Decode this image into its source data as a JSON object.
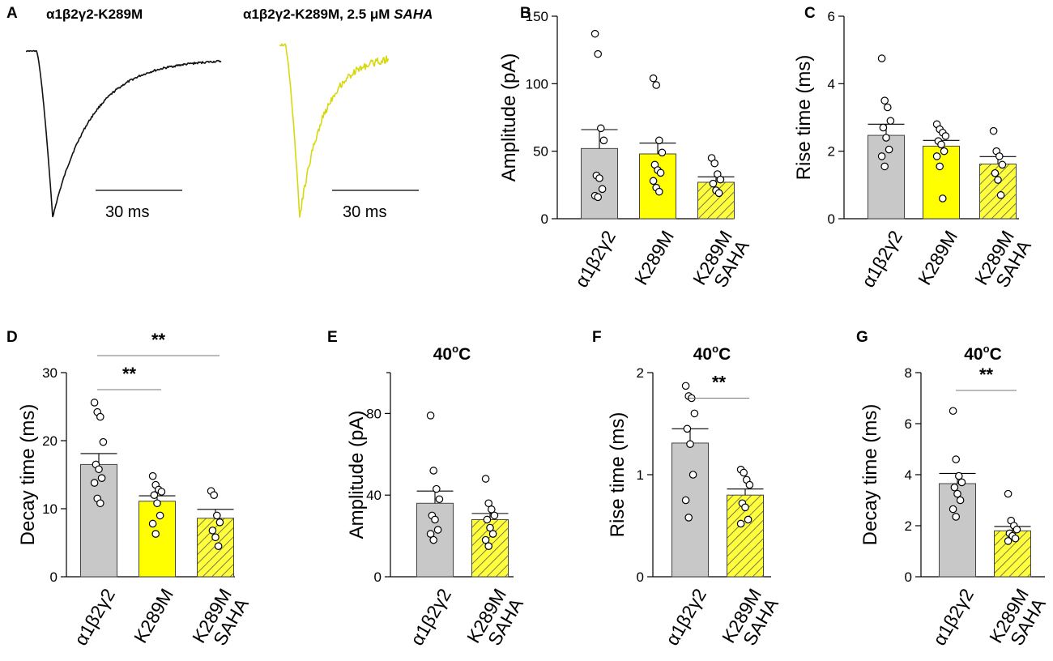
{
  "figure": {
    "colors": {
      "gray": "#c8c8c8",
      "yellow": "#ffff00",
      "hatch_bg": "#ffff3c",
      "hatch_line": "#555555",
      "trace_black": "#111111",
      "trace_yellow": "#d8d810"
    }
  },
  "traces": {
    "panel_label": "A",
    "left": {
      "title": "α1β2γ2-K289M",
      "scale_label": "30 ms"
    },
    "right": {
      "title_main": "α1β2γ2-K289M, 2.5 μM ",
      "title_italic": "SAHA",
      "scale_label": "30 ms"
    }
  },
  "chart_data": [
    {
      "id": "B",
      "panel_label": "B",
      "type": "bar",
      "title": "",
      "ylabel": "Amplitude (pA)",
      "ylim": [
        0,
        150
      ],
      "yticks": [
        0,
        50,
        100,
        150
      ],
      "categories": [
        {
          "line1": "α1β2γ2",
          "line2": "",
          "style": "gray",
          "mean": 52,
          "sem": 14,
          "points": [
            137,
            122,
            67,
            58,
            32,
            30,
            22,
            17,
            16
          ]
        },
        {
          "line1": "K289M",
          "line2": "",
          "style": "yellow",
          "mean": 48,
          "sem": 8,
          "points": [
            104,
            99,
            58,
            49,
            40,
            36,
            34,
            28,
            23,
            20
          ]
        },
        {
          "line1": "K289M",
          "line2": "SAHA",
          "style": "hatch",
          "mean": 27,
          "sem": 4,
          "points": [
            45,
            41,
            33,
            29,
            26,
            21,
            19
          ]
        }
      ],
      "significance": []
    },
    {
      "id": "C",
      "panel_label": "C",
      "type": "bar",
      "title": "",
      "ylabel": "Rise time (ms)",
      "ylim": [
        0,
        6
      ],
      "yticks": [
        0,
        2,
        4,
        6
      ],
      "categories": [
        {
          "line1": "α1β2γ2",
          "line2": "",
          "style": "gray",
          "mean": 2.47,
          "sem": 0.33,
          "points": [
            4.75,
            3.5,
            3.3,
            2.9,
            2.7,
            2.4,
            2.05,
            1.85,
            1.55
          ]
        },
        {
          "line1": "K289M",
          "line2": "",
          "style": "yellow",
          "mean": 2.15,
          "sem": 0.17,
          "points": [
            2.8,
            2.65,
            2.55,
            2.45,
            2.3,
            2.2,
            2.0,
            1.85,
            1.55,
            0.6
          ]
        },
        {
          "line1": "K289M",
          "line2": "SAHA",
          "style": "hatch",
          "mean": 1.62,
          "sem": 0.22,
          "points": [
            2.6,
            2.0,
            1.85,
            1.6,
            1.35,
            1.15,
            0.7
          ]
        }
      ],
      "significance": []
    },
    {
      "id": "D",
      "panel_label": "D",
      "type": "bar",
      "title": "",
      "ylabel": "Decay time (ms)",
      "ylim": [
        0,
        30
      ],
      "yticks": [
        0,
        10,
        20,
        30
      ],
      "categories": [
        {
          "line1": "α1β2γ2",
          "line2": "",
          "style": "gray",
          "mean": 16.5,
          "sem": 1.6,
          "points": [
            25.6,
            24.2,
            23.5,
            19.8,
            16.5,
            15.8,
            14.5,
            13.8,
            11.5,
            10.8
          ]
        },
        {
          "line1": "K289M",
          "line2": "",
          "style": "yellow",
          "mean": 11.1,
          "sem": 0.8,
          "points": [
            14.8,
            13.5,
            12.8,
            12.5,
            12.0,
            10.8,
            9.0,
            7.8,
            6.3
          ]
        },
        {
          "line1": "K289M",
          "line2": "SAHA",
          "style": "hatch",
          "mean": 8.6,
          "sem": 1.3,
          "points": [
            12.6,
            12.0,
            9.0,
            8.0,
            6.8,
            5.8,
            4.5
          ]
        }
      ],
      "significance": [
        {
          "from": 0,
          "to": 1,
          "label": "**",
          "y": 27.5
        },
        {
          "from": 0,
          "to": 2,
          "label": "**",
          "y": 32.5
        }
      ]
    },
    {
      "id": "E",
      "panel_label": "E",
      "type": "bar",
      "title": "40ºC",
      "ylabel": "Amplitude (pA)",
      "ylim": [
        0,
        100
      ],
      "yticks": [
        0,
        40,
        80
      ],
      "categories": [
        {
          "line1": "α1β2γ2",
          "line2": "",
          "style": "gray",
          "mean": 36,
          "sem": 6,
          "points": [
            79,
            52,
            43,
            38,
            30,
            28,
            23,
            21,
            18
          ]
        },
        {
          "line1": "K289M",
          "line2": "SAHA",
          "style": "hatch",
          "mean": 28,
          "sem": 3,
          "points": [
            48,
            36,
            33,
            30,
            28,
            24,
            21,
            18,
            15
          ]
        }
      ],
      "significance": []
    },
    {
      "id": "F",
      "panel_label": "F",
      "type": "bar",
      "title": "40ºC",
      "ylabel": "Rise time (ms)",
      "ylim": [
        0,
        2
      ],
      "yticks": [
        0,
        1,
        2
      ],
      "categories": [
        {
          "line1": "α1β2γ2",
          "line2": "",
          "style": "gray",
          "mean": 1.31,
          "sem": 0.14,
          "points": [
            1.87,
            1.77,
            1.75,
            1.6,
            1.45,
            1.3,
            1.0,
            0.75,
            0.58
          ]
        },
        {
          "line1": "K289M",
          "line2": "SAHA",
          "style": "hatch",
          "mean": 0.8,
          "sem": 0.06,
          "points": [
            1.05,
            1.02,
            0.95,
            0.9,
            0.72,
            0.68,
            0.56,
            0.52
          ]
        }
      ],
      "significance": [
        {
          "from": 0,
          "to": 1,
          "label": "**",
          "y": 1.75
        }
      ]
    },
    {
      "id": "G",
      "panel_label": "G",
      "type": "bar",
      "title": "40ºC",
      "ylabel": "Decay time (ms)",
      "ylim": [
        0,
        8
      ],
      "yticks": [
        0,
        2,
        4,
        6,
        8
      ],
      "categories": [
        {
          "line1": "α1β2γ2",
          "line2": "",
          "style": "gray",
          "mean": 3.65,
          "sem": 0.4,
          "points": [
            6.5,
            4.6,
            3.95,
            3.7,
            3.5,
            3.25,
            3.0,
            2.65,
            2.35
          ]
        },
        {
          "line1": "K289M",
          "line2": "SAHA",
          "style": "hatch",
          "mean": 1.8,
          "sem": 0.17,
          "points": [
            3.25,
            2.2,
            2.0,
            1.85,
            1.7,
            1.6,
            1.5,
            1.4
          ]
        }
      ],
      "significance": [
        {
          "from": 0,
          "to": 1,
          "label": "**",
          "y": 7.3
        }
      ]
    }
  ]
}
